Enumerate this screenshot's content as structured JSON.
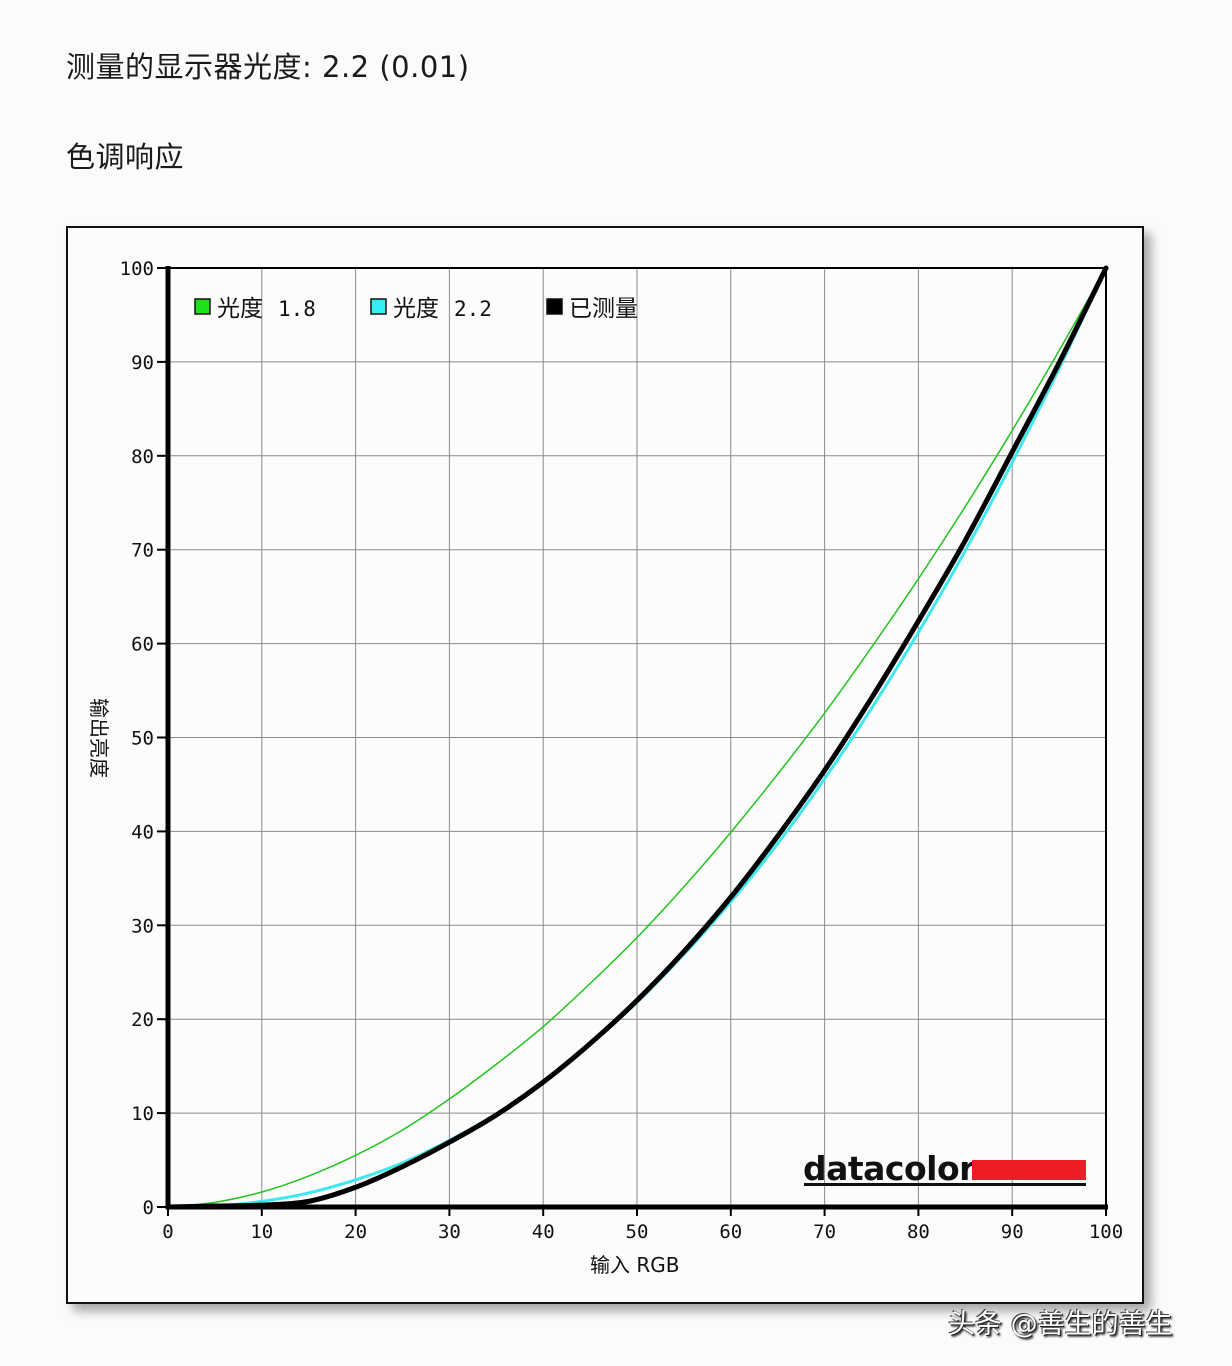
{
  "header": {
    "gamma_label": "测量的显示器光度:",
    "gamma_value": "2.2 (0.01)",
    "section_title": "色调响应"
  },
  "watermark": "头条 @善生的善生",
  "brand": {
    "name": "datacolor",
    "accent": "#ee1c24"
  },
  "chart_data": {
    "type": "line",
    "title": "色调响应",
    "xlabel": "输入 RGB",
    "ylabel": "输出亮度",
    "xlim": [
      0,
      100
    ],
    "ylim": [
      0,
      100
    ],
    "grid": true,
    "legend_position": "top-left inside",
    "x_ticks": [
      0,
      10,
      20,
      30,
      40,
      50,
      60,
      70,
      80,
      90,
      100
    ],
    "y_ticks": [
      0,
      10,
      20,
      30,
      40,
      50,
      60,
      70,
      80,
      90,
      100
    ],
    "x": [
      0,
      5,
      10,
      15,
      20,
      25,
      30,
      35,
      40,
      45,
      50,
      55,
      60,
      65,
      70,
      75,
      80,
      85,
      90,
      95,
      100
    ],
    "series": [
      {
        "name": "光度 1.8",
        "color": "#22c41e",
        "legend_swatch": "#1fe01a",
        "width": 1.5,
        "values": [
          0,
          0.5,
          1.6,
          3.3,
          5.5,
          8.2,
          11.5,
          15.2,
          19.2,
          23.8,
          28.7,
          34.1,
          39.9,
          46.1,
          52.6,
          59.6,
          66.9,
          74.6,
          82.7,
          91.2,
          100
        ]
      },
      {
        "name": "光度 2.2",
        "color": "#3ee8ee",
        "legend_swatch": "#33eef2",
        "width": 3,
        "values": [
          0,
          0.1,
          0.6,
          1.5,
          2.9,
          4.7,
          7.1,
          9.9,
          13.3,
          17.3,
          21.8,
          26.9,
          32.5,
          38.7,
          45.6,
          53.1,
          61.2,
          69.9,
          79.3,
          89.3,
          100
        ]
      },
      {
        "name": "已测量",
        "color": "#000000",
        "legend_swatch": "#000000",
        "width": 5,
        "values": [
          0,
          0.1,
          0.2,
          0.6,
          2.1,
          4.3,
          6.9,
          9.8,
          13.3,
          17.4,
          22.0,
          27.2,
          33.0,
          39.5,
          46.5,
          54.2,
          62.4,
          71.0,
          80.4,
          89.9,
          100
        ]
      }
    ]
  }
}
